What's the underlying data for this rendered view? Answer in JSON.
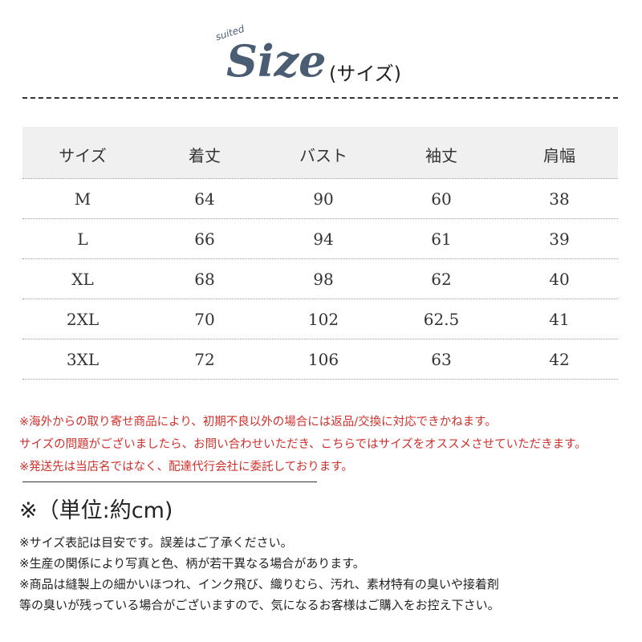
{
  "header": {
    "small": "suited",
    "logo": "Size",
    "subtitle": "(サイズ)"
  },
  "table": {
    "columns": [
      "サイズ",
      "着丈",
      "バスト",
      "袖丈",
      "肩幅"
    ],
    "rows": [
      [
        "M",
        64,
        90,
        60,
        38
      ],
      [
        "L",
        66,
        94,
        61,
        39
      ],
      [
        "XL",
        68,
        98,
        62,
        40
      ],
      [
        "2XL",
        70,
        102,
        62.5,
        41
      ],
      [
        "3XL",
        72,
        106,
        63,
        42
      ]
    ]
  },
  "notices": [
    "※海外からの取り寄せ商品により、初期不良以外の場合には返品/交換に対応できかねます。",
    "サイズの問題がございましたら、お問い合わせいただき、こちらではサイズをオススメさせていただきます。",
    "※発送先は当店名ではなく、配達代行会社に委託しております。"
  ],
  "unit": "※（単位:約cm)",
  "notes": [
    "※サイズ表記は目安です。誤差はご了承ください。",
    "※生産の関係により写真と色、柄が若干異なる場合があります。",
    "※商品は縫製上の細かいほつれ、インク飛び、織りむら、汚れ、素材特有の臭いや接着剤",
    "等の臭いが残っている場合がございますので、気になるお客様はご購入をお控え下さい。"
  ]
}
